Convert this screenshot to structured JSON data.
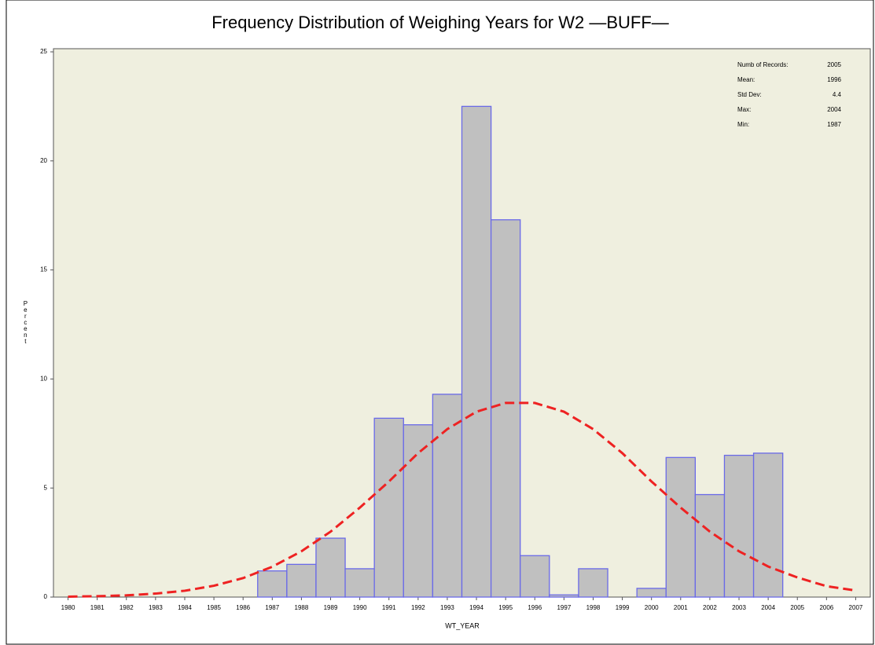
{
  "chart_data": {
    "type": "bar",
    "title": "Frequency Distribution of Weighing Years for W2 —BUFF—",
    "x_label": "WT_YEAR",
    "y_label": "Percent",
    "categories": [
      "1980",
      "1981",
      "1982",
      "1983",
      "1984",
      "1985",
      "1986",
      "1987",
      "1988",
      "1989",
      "1990",
      "1991",
      "1992",
      "1993",
      "1994",
      "1995",
      "1996",
      "1997",
      "1998",
      "1999",
      "2000",
      "2001",
      "2002",
      "2003",
      "2004",
      "2005",
      "2006",
      "2007"
    ],
    "values": [
      0,
      0,
      0,
      0,
      0,
      0,
      0,
      1.2,
      1.5,
      2.7,
      1.3,
      8.2,
      7.9,
      9.3,
      22.5,
      17.3,
      1.9,
      0.1,
      1.3,
      0,
      0.4,
      6.4,
      4.7,
      6.5,
      6.6,
      0,
      0,
      0
    ],
    "color": "#c0c0c0",
    "edge_color": "#6a6ae8",
    "curve": {
      "color": "#ee2222",
      "values": [
        0.02,
        0.04,
        0.08,
        0.16,
        0.29,
        0.52,
        0.87,
        1.39,
        2.1,
        3.0,
        4.1,
        5.3,
        6.6,
        7.7,
        8.5,
        8.9,
        8.9,
        8.5,
        7.7,
        6.6,
        5.3,
        4.1,
        3.0,
        2.1,
        1.4,
        0.9,
        0.5,
        0.3
      ]
    },
    "ylim": [
      0,
      25
    ],
    "yticks": [
      0,
      5,
      10,
      15,
      20,
      25
    ],
    "stats": [
      {
        "label": "Numb of Records:",
        "value": 2005
      },
      {
        "label": "Mean:",
        "value": 1996
      },
      {
        "label": "Std Dev:",
        "value": 4.4
      },
      {
        "label": "Max:",
        "value": 2004
      },
      {
        "label": "Min:",
        "value": 1987
      }
    ]
  }
}
